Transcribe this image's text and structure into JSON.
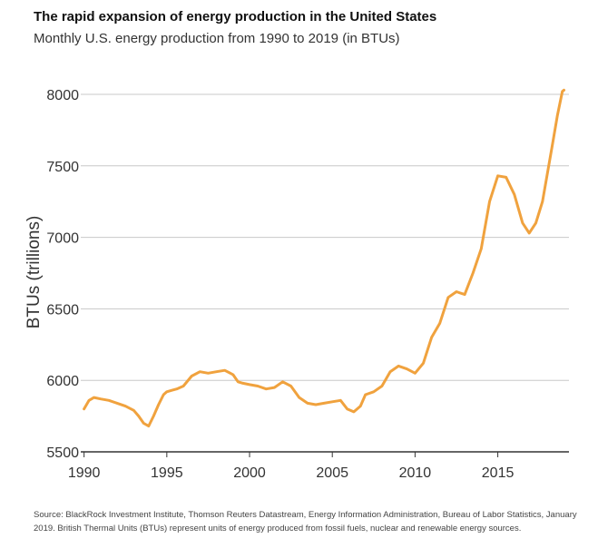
{
  "header": {
    "title": "The rapid expansion of energy production in the United States",
    "subtitle": "Monthly U.S. energy production from 1990 to 2019 (in BTUs)"
  },
  "footer": {
    "source": "Source: BlackRock Investment Institute, Thomson Reuters Datastream, Energy Information Administration, Bureau of Labor Statistics, January 2019. British Thermal Units (BTUs) represent units of energy produced from fossil fuels, nuclear and renewable energy sources."
  },
  "colors": {
    "line": "#F0A23E",
    "grid": "#c8c8c8",
    "axis": "#333333"
  },
  "chart_data": {
    "type": "line",
    "title": "The rapid expansion of energy production in the United States",
    "subtitle": "Monthly U.S. energy production from 1990 to 2019 (in BTUs)",
    "xlabel": "",
    "ylabel": "BTUs (trillions)",
    "xlim": [
      1989.8,
      2019.3
    ],
    "ylim": [
      5500,
      8000
    ],
    "xticks": [
      1990,
      1995,
      2000,
      2005,
      2010,
      2015
    ],
    "yticks": [
      5500,
      6000,
      6500,
      7000,
      7500,
      8000
    ],
    "grid": "horizontal",
    "series": [
      {
        "color": "#F0A23E",
        "x": [
          1990.0,
          1990.3,
          1990.6,
          1991.0,
          1991.5,
          1992.0,
          1992.5,
          1993.0,
          1993.3,
          1993.6,
          1993.9,
          1994.2,
          1994.5,
          1994.8,
          1995.0,
          1995.3,
          1995.6,
          1996.0,
          1996.5,
          1997.0,
          1997.5,
          1998.0,
          1998.5,
          1999.0,
          1999.3,
          1999.6,
          2000.0,
          2000.5,
          2001.0,
          2001.5,
          2002.0,
          2002.5,
          2003.0,
          2003.5,
          2004.0,
          2004.5,
          2005.0,
          2005.5,
          2005.9,
          2006.3,
          2006.7,
          2007.0,
          2007.5,
          2008.0,
          2008.5,
          2009.0,
          2009.5,
          2010.0,
          2010.5,
          2011.0,
          2011.5,
          2012.0,
          2012.5,
          2013.0,
          2013.5,
          2014.0,
          2014.5,
          2015.0,
          2015.5,
          2016.0,
          2016.5,
          2016.9,
          2017.3,
          2017.7,
          2018.0,
          2018.3,
          2018.6,
          2018.9,
          2019.0
        ],
        "y": [
          5800,
          5860,
          5880,
          5870,
          5860,
          5840,
          5820,
          5790,
          5750,
          5700,
          5680,
          5750,
          5830,
          5900,
          5920,
          5930,
          5940,
          5960,
          6030,
          6060,
          6050,
          6060,
          6070,
          6040,
          5990,
          5980,
          5970,
          5960,
          5940,
          5950,
          5990,
          5960,
          5880,
          5840,
          5830,
          5840,
          5850,
          5860,
          5800,
          5780,
          5820,
          5900,
          5920,
          5960,
          6060,
          6100,
          6080,
          6050,
          6120,
          6300,
          6400,
          6580,
          6620,
          6600,
          6750,
          6920,
          7250,
          7430,
          7420,
          7300,
          7100,
          7030,
          7100,
          7250,
          7450,
          7650,
          7850,
          8020,
          8030
        ]
      }
    ]
  }
}
